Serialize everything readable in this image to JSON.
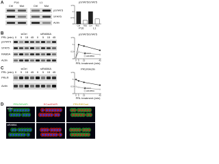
{
  "panel_labels": [
    "A",
    "B",
    "C",
    "D"
  ],
  "panel_a": {
    "groups": [
      "P16",
      "L1"
    ],
    "lanes": [
      "Ctrl",
      "Mut",
      "Ctrl",
      "Mut"
    ],
    "rows": [
      "pSTAT5",
      "STAT5",
      "Actin"
    ],
    "chart": {
      "type": "bar",
      "title": "pSTAT5/STAT5",
      "categories": [
        "Ctrl",
        "Mut",
        "Ctrl",
        "Mut"
      ],
      "groups": [
        "P16",
        "L1"
      ],
      "values": [
        1,
        0.3,
        1,
        0.4
      ],
      "colors": [
        "#222222",
        "#ffffff"
      ],
      "ylim": [
        0,
        1.5
      ],
      "yticks": [
        0,
        0.5,
        1,
        1.5
      ]
    }
  },
  "panel_b": {
    "conditions": [
      "siCtrl",
      "siRAB6A"
    ],
    "time_label": "PRL (min)",
    "lanes": [
      "0",
      "5",
      "15",
      "45",
      "0",
      "5",
      "15",
      "45"
    ],
    "rows": [
      "pSTAT5",
      "STAT5",
      "RAB6A",
      "Actin"
    ],
    "chart": {
      "type": "line",
      "title": "pSTAT5/STAT5",
      "x_label": "PRL treatment (min)",
      "x": [
        0,
        5,
        15,
        45
      ],
      "series": [
        {
          "name": "siCtrl",
          "color": "#222222",
          "values": [
            0.1,
            1.0,
            0.9,
            0.6
          ]
        },
        {
          "name": "siRAB6A",
          "color": "#888888",
          "values": [
            0.1,
            0.5,
            0.4,
            0.3
          ]
        }
      ],
      "xlim": [
        0,
        45
      ],
      "xticks": [
        0,
        5,
        15,
        45
      ],
      "ylim": [
        0,
        1.5
      ],
      "yticks": [
        0,
        0.5,
        1,
        1.5
      ]
    }
  },
  "panel_c": {
    "conditions": [
      "siCtrl",
      "siRAB6A"
    ],
    "time_label": "PRL (min)",
    "lanes": [
      "0",
      "5",
      "15",
      "45",
      "0",
      "5",
      "15",
      "45"
    ],
    "rows": [
      "PRLR",
      "Actin"
    ],
    "chart": {
      "type": "line",
      "title": "PRLR/Actin",
      "x_label": "PRL treatment (min)",
      "x": [
        0,
        5,
        15,
        45
      ],
      "series": [
        {
          "name": "siCtrl",
          "color": "#222222",
          "values": [
            1.0,
            0.9,
            0.8,
            0.6
          ]
        },
        {
          "name": "siRAB6A",
          "color": "#888888",
          "values": [
            0.5,
            0.45,
            0.4,
            0.3
          ]
        }
      ],
      "xlim": [
        0,
        45
      ],
      "xticks": [
        0,
        5,
        15,
        45
      ],
      "ylim": [
        0,
        1.5
      ],
      "yticks": [
        0,
        0.5,
        1,
        1.5
      ]
    }
  },
  "panel_d": {
    "headers": [
      "PRLR/DAPI",
      "ECad/DAPI",
      "PRLR/ECad"
    ],
    "rows": [
      "siCtrl",
      "siRAB6A"
    ]
  }
}
